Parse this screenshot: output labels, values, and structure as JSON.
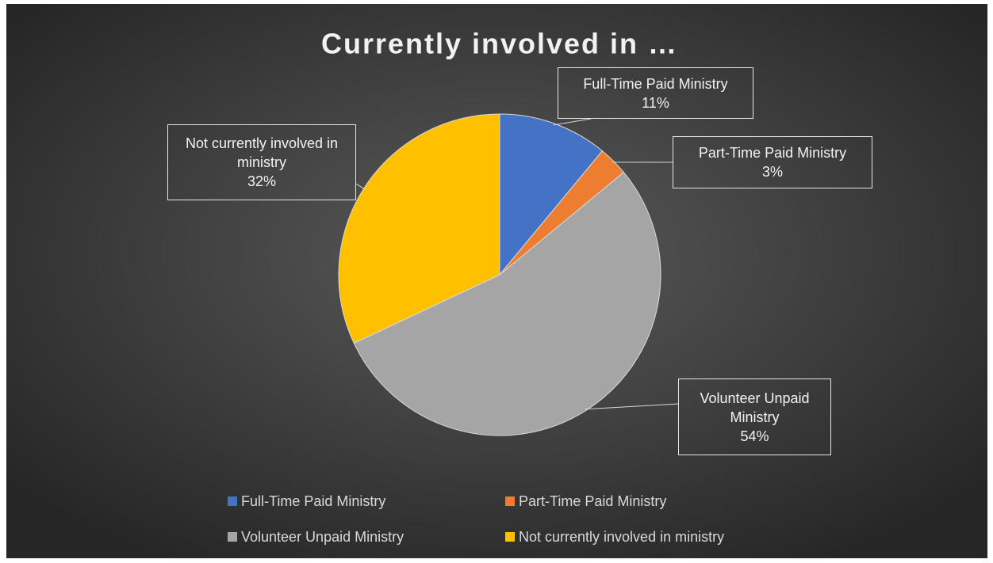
{
  "chart_data": {
    "type": "pie",
    "title": "Currently involved in …",
    "categories": [
      "Full-Time Paid Ministry",
      "Part-Time Paid Ministry",
      "Volunteer Unpaid Ministry",
      "Not currently involved in ministry"
    ],
    "values": [
      11,
      3,
      54,
      32
    ],
    "value_labels": [
      "11%",
      "3%",
      "54%",
      "32%"
    ],
    "colors": [
      "#4472c4",
      "#ed7d31",
      "#a5a5a5",
      "#ffc000"
    ],
    "legend": "bottom"
  }
}
